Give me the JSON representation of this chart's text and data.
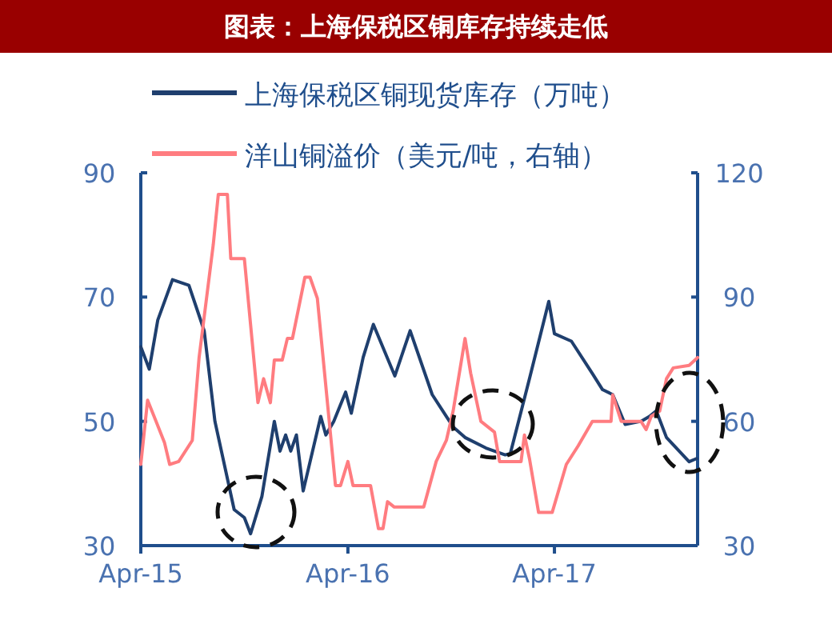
{
  "chart_data": {
    "type": "line",
    "title": "图表：上海保税区铜库存持续走低",
    "xlim": [
      "2015-04-01",
      "2017-12-10"
    ],
    "xticks": [
      {
        "value": "2015-04-01",
        "label": "Apr-15"
      },
      {
        "value": "2016-04-01",
        "label": "Apr-16"
      },
      {
        "value": "2017-04-01",
        "label": "Apr-17"
      }
    ],
    "ylim": [
      30,
      90
    ],
    "yticks": [
      30,
      50,
      70,
      90
    ],
    "y2lim": [
      30,
      120
    ],
    "y2ticks": [
      30,
      60,
      90,
      120
    ],
    "legend": "top",
    "grid": false,
    "marker": "none",
    "line_style": "solid",
    "series": [
      {
        "name": "上海保税区铜现货库存（万吨）",
        "color": "#1f3f6e",
        "x": [
          "2015-04-01",
          "2015-04-16",
          "2015-05-01",
          "2015-05-27",
          "2015-06-25",
          "2015-07-22",
          "2015-08-10",
          "2015-09-13",
          "2015-10-01",
          "2015-10-12",
          "2015-11-01",
          "2015-11-23",
          "2015-12-03",
          "2015-12-13",
          "2015-12-22",
          "2016-01-01",
          "2016-01-13",
          "2016-02-13",
          "2016-02-22",
          "2016-03-07",
          "2016-03-28",
          "2016-04-07",
          "2016-04-28",
          "2016-05-16",
          "2016-06-23",
          "2016-07-20",
          "2016-08-28",
          "2016-10-04",
          "2016-10-25",
          "2016-12-01",
          "2017-01-04",
          "2017-01-13",
          "2017-02-16",
          "2017-03-22",
          "2017-04-01",
          "2017-05-01",
          "2017-06-07",
          "2017-06-25",
          "2017-07-13",
          "2017-08-04",
          "2017-09-01",
          "2017-09-16",
          "2017-09-28",
          "2017-10-16",
          "2017-11-25",
          "2017-12-08"
        ],
        "values": [
          62,
          58.4,
          66.3,
          72.8,
          71.9,
          64.6,
          50,
          35.8,
          34.5,
          31.9,
          37.9,
          50,
          45.2,
          47.8,
          45.2,
          47.8,
          38.8,
          50.8,
          47.8,
          50,
          54.7,
          51.3,
          60.3,
          65.6,
          57.3,
          64.6,
          54.3,
          49.1,
          47.4,
          45.7,
          44.6,
          44.8,
          56.9,
          69.3,
          64.1,
          62.9,
          57.7,
          55.1,
          54.3,
          49.5,
          50,
          50.8,
          51.7,
          47.4,
          43.5,
          44
        ]
      },
      {
        "name": "洋山铜溢价（美元/吨，右轴）",
        "color": "#ff7c80",
        "axis": "y2",
        "x": [
          "2015-04-01",
          "2015-04-13",
          "2015-04-28",
          "2015-05-13",
          "2015-05-22",
          "2015-06-07",
          "2015-07-01",
          "2015-07-13",
          "2015-08-07",
          "2015-08-16",
          "2015-09-01",
          "2015-09-07",
          "2015-10-01",
          "2015-10-25",
          "2015-11-04",
          "2015-11-16",
          "2015-11-23",
          "2015-12-07",
          "2015-12-16",
          "2015-12-25",
          "2016-01-16",
          "2016-01-25",
          "2016-02-07",
          "2016-03-10",
          "2016-03-19",
          "2016-04-01",
          "2016-04-10",
          "2016-05-11",
          "2016-05-25",
          "2016-06-02",
          "2016-06-10",
          "2016-06-22",
          "2016-08-13",
          "2016-09-04",
          "2016-09-22",
          "2016-10-04",
          "2016-10-25",
          "2016-11-04",
          "2016-11-22",
          "2016-12-16",
          "2016-12-25",
          "2017-02-01",
          "2017-02-07",
          "2017-02-16",
          "2017-03-04",
          "2017-03-28",
          "2017-04-22",
          "2017-05-13",
          "2017-06-07",
          "2017-07-10",
          "2017-07-13",
          "2017-07-28",
          "2017-09-01",
          "2017-09-10",
          "2017-09-19",
          "2017-10-04",
          "2017-10-16",
          "2017-10-28",
          "2017-11-25",
          "2017-12-10"
        ],
        "values": [
          49.6,
          65.1,
          60,
          54.8,
          49.6,
          50.3,
          55.4,
          75.4,
          102.6,
          114.8,
          114.8,
          99.3,
          99.3,
          64.5,
          70.3,
          64.5,
          74.8,
          74.8,
          80,
          80,
          94.8,
          94.8,
          89.7,
          44.5,
          44.5,
          50.3,
          44.5,
          44.5,
          34.1,
          34.1,
          40.6,
          39.3,
          39.3,
          50.3,
          55.4,
          62.5,
          80,
          71.6,
          60,
          57.4,
          50.3,
          50.3,
          56.7,
          50.9,
          38,
          38,
          49.6,
          54.1,
          60,
          60,
          66.4,
          60,
          60,
          58,
          61.2,
          62.5,
          70.3,
          72.9,
          73.5,
          75.4
        ]
      }
    ]
  }
}
